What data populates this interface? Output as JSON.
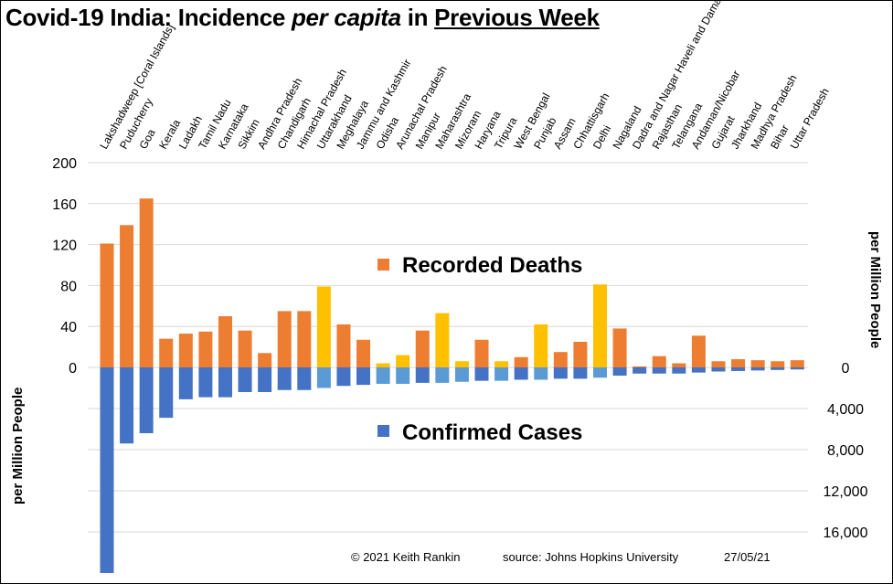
{
  "title": {
    "part1": "Covid-19 India: Incidence ",
    "part2": "per capita",
    "part3": " in ",
    "part4": "Previous Week"
  },
  "footer": {
    "copyright": "© 2021  Keith  Rankin",
    "source": "source:  Johns  Hopkins  University",
    "date": "27/05/21"
  },
  "colors": {
    "deaths": "#ED7D31",
    "deaths_highlight": "#FFC000",
    "cases": "#4472C4",
    "cases_highlight": "#5B9BD5",
    "grid": "#D9D9D9"
  },
  "chart_data": {
    "type": "bar",
    "categories": [
      "Lakshadweep [Coral Islands]",
      "Puducherry",
      "Goa",
      "Kerala",
      "Ladakh",
      "Tamil Nadu",
      "Karnataka",
      "Sikkim",
      "Andhra Pradesh",
      "Chandigarh",
      "Himachal Pradesh",
      "Uttarakhand",
      "Meghalaya",
      "Jammu and Kashmir",
      "Odisha",
      "Arunachal Pradesh",
      "Manipur",
      "Maharashtra",
      "Mizoram",
      "Haryana",
      "Tripura",
      "West Bengal",
      "Punjab",
      "Assam",
      "Chhattisgarh",
      "Delhi",
      "Nagaland",
      "Dadra and Nagar Haveli and Daman",
      "Rajasthan",
      "Telangana",
      "Andaman/Nicobar",
      "Gujarat",
      "Jharkhand",
      "Madhya Pradesh",
      "Bihar",
      "Uttar Pradesh"
    ],
    "highlighted": [
      false,
      false,
      false,
      false,
      false,
      false,
      false,
      false,
      false,
      false,
      false,
      true,
      false,
      false,
      true,
      true,
      false,
      true,
      true,
      false,
      true,
      false,
      true,
      false,
      false,
      true,
      false,
      false,
      false,
      false,
      false,
      false,
      false,
      false,
      false,
      false
    ],
    "series": [
      {
        "name": "Recorded Deaths",
        "values": [
          121,
          139,
          165,
          28,
          33,
          35,
          50,
          36,
          14,
          55,
          55,
          79,
          42,
          27,
          4,
          12,
          36,
          53,
          6,
          27,
          6,
          10,
          42,
          15,
          25,
          81,
          38,
          1,
          11,
          4,
          31,
          6,
          8,
          7,
          6,
          7
        ]
      },
      {
        "name": "Confirmed Cases",
        "values": [
          20000,
          7400,
          6400,
          4900,
          3100,
          2900,
          2900,
          2400,
          2400,
          2200,
          2200,
          2000,
          1800,
          1700,
          1600,
          1600,
          1500,
          1500,
          1400,
          1300,
          1300,
          1200,
          1200,
          1100,
          1100,
          1000,
          800,
          600,
          600,
          600,
          500,
          400,
          350,
          300,
          250,
          200
        ]
      }
    ],
    "left_axis": {
      "range": [
        0,
        200
      ],
      "ticks": [
        "0",
        "40",
        "80",
        "120",
        "160",
        "200"
      ]
    },
    "right_axis": {
      "ticks": [
        "0",
        "4,000",
        "8,000",
        "12,000",
        "16,000"
      ],
      "label": "per Million People"
    },
    "left_axis_label": "per Million People",
    "grid": true,
    "legend": {
      "deaths_label": "Recorded Deaths",
      "cases_label": "Confirmed Cases"
    }
  }
}
